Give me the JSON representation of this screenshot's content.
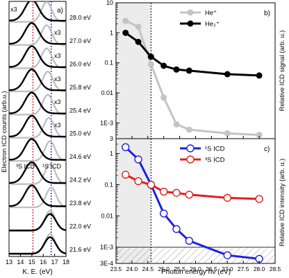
{
  "chart_data": [
    {
      "panel": "a)",
      "type": "line",
      "xlabel": "K. E. (eV)",
      "ylabel": "Electron ICD counts (arb.u.)",
      "xlim": [
        13,
        18
      ],
      "xticks": [
        "13",
        "14",
        "15",
        "16",
        "17",
        "18"
      ],
      "annotations": {
        "left_line": "³S ICD",
        "right_line": "¹S ICD"
      },
      "vlines": [
        {
          "x": 15.1,
          "color": "#d62728"
        },
        {
          "x": 16.7,
          "color": "#2028c8"
        }
      ],
      "traces": [
        {
          "energy": "28.0 eV",
          "scale": "x3",
          "black_peak": 15.0,
          "gray_peak": 16.3
        },
        {
          "energy": "27.0 eV",
          "scale": "x3",
          "black_peak": 15.0,
          "gray_peak": 16.3
        },
        {
          "energy": "26.0 eV",
          "scale": "x3",
          "black_peak": 15.0,
          "gray_peak": 16.3
        },
        {
          "energy": "25.8 eV",
          "scale": "x3",
          "black_peak": 15.0,
          "gray_peak": 16.4
        },
        {
          "energy": "25.4 eV",
          "scale": "x3",
          "black_peak": 15.0,
          "gray_peak": 16.4
        },
        {
          "energy": "25.0 eV",
          "scale": "x3",
          "black_peak": 15.0,
          "gray_peak": 16.5
        },
        {
          "energy": "24.6 eV",
          "scale": "",
          "black_peak": 15.0,
          "gray_peak": 16.6
        },
        {
          "energy": "24.2 eV",
          "scale": "",
          "black_peak": 15.0,
          "gray_peak": 16.6
        },
        {
          "energy": "23.8 eV",
          "scale": "",
          "black_peak": 15.0,
          "gray_peak": 16.7
        },
        {
          "energy": "22.0 eV",
          "scale": "",
          "black_peak": 16.6,
          "gray_peak": 16.6
        },
        {
          "energy": "21.6 eV",
          "scale": "",
          "black_peak": 16.6,
          "gray_peak": 16.6
        }
      ]
    },
    {
      "panel": "b)",
      "type": "line",
      "yscale": "log",
      "ylim": [
        0.0003,
        10
      ],
      "ytick_labels": [
        {
          "v": 10,
          "t": "10"
        },
        {
          "v": 1,
          "t": "1"
        },
        {
          "v": 0.1,
          "t": "0.1"
        },
        {
          "v": 0.01,
          "t": "0.01"
        },
        {
          "v": 0.001,
          "t": "1E-3"
        }
      ],
      "xlim": [
        23.5,
        28.5
      ],
      "ylabel": "Relative ICD signal (arb. u.)",
      "legend_position": "top-right",
      "shaded_region": [
        23.5,
        24.6
      ],
      "vline": 24.6,
      "hatched_below": 0.0003,
      "hline": 0.0003,
      "series": [
        {
          "name": "He⁺",
          "color": "#c4c4c4",
          "x": [
            23.8,
            24.2,
            24.6,
            25.0,
            25.4,
            25.8,
            27.0,
            28.0
          ],
          "y": [
            2.5,
            1.6,
            0.09,
            0.007,
            0.0009,
            0.0006,
            0.00045,
            0.0004
          ]
        },
        {
          "name": "He₂⁺",
          "color": "#000000",
          "x": [
            23.8,
            24.2,
            24.6,
            25.0,
            25.4,
            25.8,
            27.0,
            28.0
          ],
          "y": [
            1.0,
            0.5,
            0.16,
            0.08,
            0.06,
            0.055,
            0.042,
            0.038
          ]
        }
      ]
    },
    {
      "panel": "c)",
      "type": "line",
      "yscale": "log",
      "ylim": [
        0.0003,
        3
      ],
      "ytick_labels": [
        {
          "v": 3,
          "t": "3"
        },
        {
          "v": 1,
          "t": "1"
        },
        {
          "v": 0.1,
          "t": "0.1"
        },
        {
          "v": 0.01,
          "t": "0.01"
        },
        {
          "v": 0.001,
          "t": "1E-3"
        },
        {
          "v": 0.0003,
          "t": "3E-4"
        }
      ],
      "xlim": [
        23.5,
        28.5
      ],
      "xticks": [
        "23.5",
        "24.0",
        "24.5",
        "25.0",
        "25.5",
        "26.0",
        "26.5",
        "27.0",
        "27.5",
        "28.0",
        "28.5"
      ],
      "xlabel": "Photon energy hν (eV)",
      "ylabel": "Relative ICD intensity (arb. u.)",
      "legend_position": "top-right",
      "shaded_region": [
        23.5,
        24.6
      ],
      "vline": 24.6,
      "hatched_below": 0.001,
      "hline": 0.001,
      "series": [
        {
          "name": "¹S ICD",
          "color": "#1f1fe0",
          "x": [
            23.8,
            24.2,
            24.6,
            25.0,
            25.4,
            25.8,
            27.0,
            28.0
          ],
          "y": [
            1.6,
            0.65,
            0.1,
            0.012,
            0.0038,
            0.0016,
            0.00055,
            0.00042
          ]
        },
        {
          "name": "³S ICD",
          "color": "#e01f1f",
          "x": [
            23.8,
            24.2,
            24.6,
            25.0,
            25.4,
            25.8,
            27.0,
            28.0
          ],
          "y": [
            0.21,
            0.13,
            0.1,
            0.06,
            0.055,
            0.048,
            0.038,
            0.035
          ]
        }
      ]
    }
  ]
}
